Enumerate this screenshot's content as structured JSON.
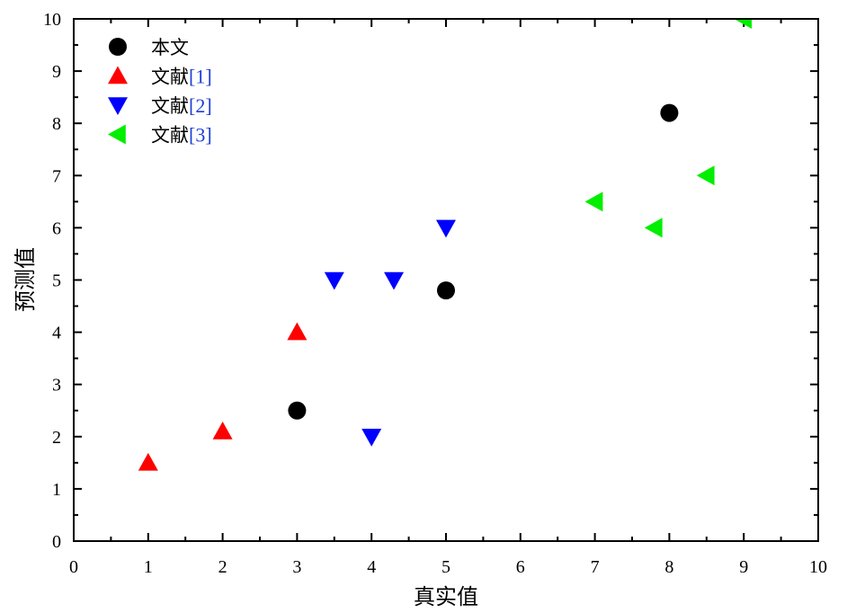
{
  "chart_data": {
    "type": "scatter",
    "title": "",
    "xlabel": "真实值",
    "ylabel": "预测值",
    "xlim": [
      0,
      10
    ],
    "ylim": [
      0,
      10
    ],
    "xticks": [
      "0",
      "1",
      "2",
      "3",
      "4",
      "5",
      "6",
      "7",
      "8",
      "9",
      "10"
    ],
    "yticks": [
      "0",
      "1",
      "2",
      "3",
      "4",
      "5",
      "6",
      "7",
      "8",
      "9",
      "10"
    ],
    "grid": false,
    "legend_position": "top-left",
    "series": [
      {
        "name": "本文",
        "name_main": "本文",
        "name_ref": "",
        "marker": "circle",
        "color": "#000000",
        "points": [
          [
            3,
            2.5
          ],
          [
            5,
            4.8
          ],
          [
            8,
            8.2
          ]
        ]
      },
      {
        "name": "文献[1]",
        "name_main": "文献",
        "name_ref": "[1]",
        "marker": "triangle-up",
        "color": "#ff0000",
        "points": [
          [
            1,
            1.5
          ],
          [
            2,
            2.1
          ],
          [
            3,
            4.0
          ]
        ]
      },
      {
        "name": "文献[2]",
        "name_main": "文献",
        "name_ref": "[2]",
        "marker": "triangle-down",
        "color": "#0000ff",
        "points": [
          [
            3.5,
            5.0
          ],
          [
            4,
            2.0
          ],
          [
            4.3,
            5.0
          ],
          [
            5,
            6.0
          ]
        ]
      },
      {
        "name": "文献[3]",
        "name_main": "文献",
        "name_ref": "[3]",
        "marker": "triangle-left",
        "color": "#00ee00",
        "points": [
          [
            7,
            6.5
          ],
          [
            7.8,
            6.0
          ],
          [
            8.5,
            7.0
          ],
          [
            9,
            10.0
          ]
        ]
      }
    ]
  }
}
